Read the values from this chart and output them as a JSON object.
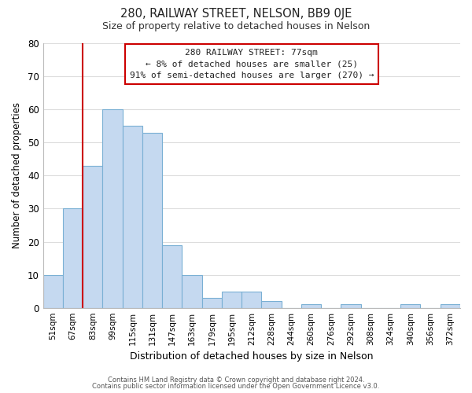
{
  "title": "280, RAILWAY STREET, NELSON, BB9 0JE",
  "subtitle": "Size of property relative to detached houses in Nelson",
  "xlabel": "Distribution of detached houses by size in Nelson",
  "ylabel": "Number of detached properties",
  "bin_labels": [
    "51sqm",
    "67sqm",
    "83sqm",
    "99sqm",
    "115sqm",
    "131sqm",
    "147sqm",
    "163sqm",
    "179sqm",
    "195sqm",
    "212sqm",
    "228sqm",
    "244sqm",
    "260sqm",
    "276sqm",
    "292sqm",
    "308sqm",
    "324sqm",
    "340sqm",
    "356sqm",
    "372sqm"
  ],
  "bar_heights": [
    10,
    30,
    43,
    60,
    55,
    53,
    19,
    10,
    3,
    5,
    5,
    2,
    0,
    1,
    0,
    1,
    0,
    0,
    1,
    0,
    1
  ],
  "bar_color": "#c5d9f0",
  "bar_edge_color": "#7ab0d4",
  "vline_x": 1.5,
  "vline_color": "#cc0000",
  "ylim": [
    0,
    80
  ],
  "yticks": [
    0,
    10,
    20,
    30,
    40,
    50,
    60,
    70,
    80
  ],
  "annotation_title": "280 RAILWAY STREET: 77sqm",
  "annotation_line1": "← 8% of detached houses are smaller (25)",
  "annotation_line2": "91% of semi-detached houses are larger (270) →",
  "annotation_box_color": "#ffffff",
  "annotation_box_edge": "#cc0000",
  "footer_line1": "Contains HM Land Registry data © Crown copyright and database right 2024.",
  "footer_line2": "Contains public sector information licensed under the Open Government Licence v3.0.",
  "background_color": "#ffffff",
  "grid_color": "#dddddd"
}
